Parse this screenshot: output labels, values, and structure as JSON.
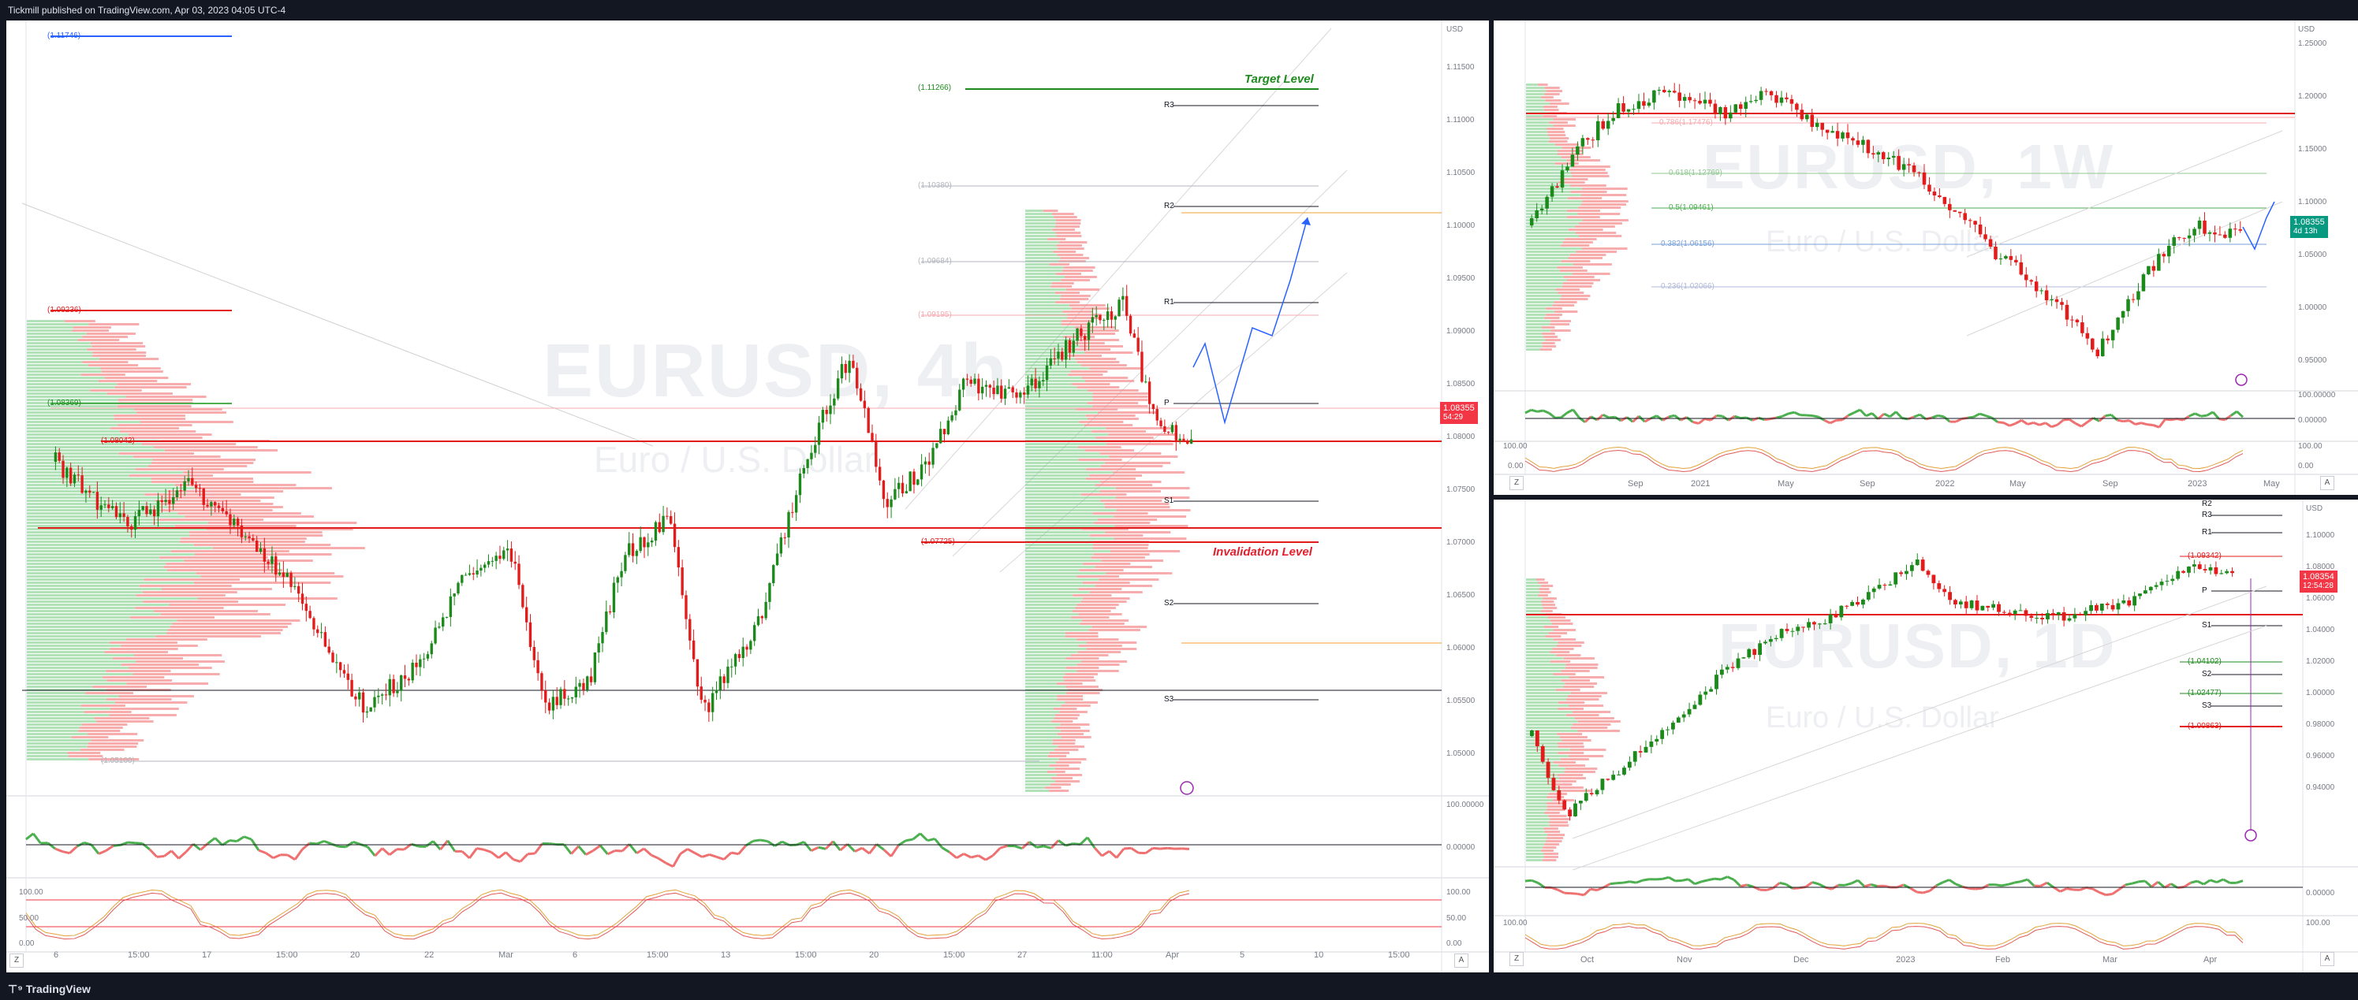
{
  "header": {
    "published_by": "Tickmill published on TradingView.com, Apr 03, 2023 04:05 UTC-4"
  },
  "footer": {
    "logo_text": "TradingView"
  },
  "colors": {
    "up": "#089981",
    "down": "#f23645",
    "candle_up": "#1b8a1b",
    "candle_down": "#e21b1b",
    "fib": "#4caf50",
    "invalid": "#e0212d",
    "proj": "#2962ff"
  },
  "main": {
    "symbol": "EURUSD, 4h",
    "description": "Euro / U.S. Dollar",
    "currency": "USD",
    "price": "1.08355",
    "countdown": "54:29",
    "annotations": {
      "target": "Target Level",
      "invalidation": "Invalidation Level"
    },
    "fib_labels": [
      "(1.11746)",
      "(1.11266)",
      "(1.10380)",
      "(1.09684)",
      "(1.09195)",
      "(1.09236)",
      "(1.08369)",
      "(1.08042)",
      "(1.07725)",
      "(1.05100)"
    ],
    "pivots": [
      "R3",
      "R2",
      "R1",
      "P",
      "S1",
      "S2",
      "S3"
    ],
    "y_axis": [
      "1.11500",
      "1.11000",
      "1.10500",
      "1.10000",
      "1.09500",
      "1.09000",
      "1.08500",
      "1.08000",
      "1.07500",
      "1.07000",
      "1.06500",
      "1.06000",
      "1.05500",
      "1.05000"
    ],
    "osc_axis_1": [
      "100.00000",
      "0.00000"
    ],
    "osc_axis_2": [
      "100.00",
      "50.00",
      "0.00"
    ],
    "x_axis": [
      "6",
      "15:00",
      "17",
      "15:00",
      "20",
      "22",
      "Mar",
      "6",
      "15:00",
      "13",
      "15:00",
      "20",
      "15:00",
      "27",
      "11:00",
      "Apr",
      "5",
      "10",
      "15:00"
    ],
    "bottom_corner": "Z",
    "bottom_right": "A"
  },
  "weekly": {
    "symbol": "EURUSD, 1W",
    "description": "Euro / U.S. Dollar",
    "currency": "USD",
    "price": "1.08355",
    "countdown": "4d 13h",
    "fib_labels": [
      "0.786(1.17476)",
      "0.618(1.12769)",
      "0.5(1.09461)",
      "0.382(1.06156)",
      "0.236(1.02066)"
    ],
    "y_axis": [
      "1.25000",
      "1.20000",
      "1.15000",
      "1.10000",
      "1.05000",
      "1.00000",
      "0.95000"
    ],
    "osc_axis_1": [
      "100.00000",
      "0.00000"
    ],
    "osc_axis_2": [
      "100.00",
      "0.00"
    ],
    "x_axis": [
      "Sep",
      "2021",
      "May",
      "Sep",
      "2022",
      "May",
      "Sep",
      "2023",
      "May"
    ],
    "bottom_corner": "Z",
    "bottom_right": "A"
  },
  "daily": {
    "symbol": "EURUSD, 1D",
    "description": "Euro / U.S. Dollar",
    "currency": "USD",
    "price": "1.08354",
    "countdown": "12:54:28",
    "fib_labels": [
      "(1.09342)",
      "(1.04102)",
      "(1.02477)",
      "(1.00863)"
    ],
    "pivots": [
      "R2",
      "R3",
      "R1",
      "P",
      "S1",
      "S2",
      "S3"
    ],
    "y_axis": [
      "1.10000",
      "1.08000",
      "1.06000",
      "1.04000",
      "1.02000",
      "1.00000",
      "0.98000",
      "0.96000",
      "0.94000"
    ],
    "osc_axis_1": [
      "0.00000"
    ],
    "osc_axis_2": [
      "100.00"
    ],
    "x_axis": [
      "Oct",
      "Nov",
      "Dec",
      "2023",
      "Feb",
      "Mar",
      "Apr"
    ],
    "bottom_corner": "Z",
    "bottom_right": "A"
  }
}
